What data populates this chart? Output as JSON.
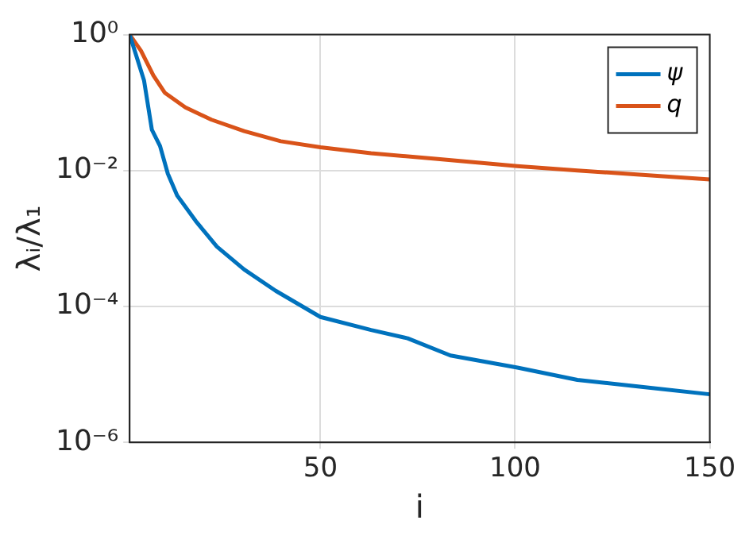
{
  "chart_data": {
    "type": "line",
    "xlabel": "i",
    "ylabel": "λᵢ/λ₁",
    "xlim": [
      1,
      150
    ],
    "xticks": [
      50,
      100,
      150
    ],
    "ylim": [
      1e-06,
      1
    ],
    "yticks": [
      {
        "value": 1,
        "label": "10⁰"
      },
      {
        "value": 0.01,
        "label": "10⁻²"
      },
      {
        "value": 0.0001,
        "label": "10⁻⁴"
      },
      {
        "value": 1e-06,
        "label": "10⁻⁶"
      }
    ],
    "log": "y",
    "grid": true,
    "legend": "top right",
    "marker": "none",
    "line_style": "solid",
    "series": [
      {
        "name": "ψ",
        "color": "#0072bd",
        "x": [
          1,
          4.7,
          6.7,
          8.8,
          10.8,
          13.2,
          18,
          23.4,
          30.4,
          38.5,
          50,
          63,
          72.4,
          83.4,
          100.6,
          116,
          132,
          150
        ],
        "values": [
          1,
          0.21,
          0.04,
          0.023,
          0.009,
          0.0043,
          0.0018,
          0.00076,
          0.00035,
          0.00017,
          7e-05,
          4.5e-05,
          3.4e-05,
          1.9e-05,
          1.26e-05,
          8.3e-06,
          6.6e-06,
          5.1e-06
        ]
      },
      {
        "name": "q",
        "color": "#d95319",
        "x": [
          1,
          3.9,
          7.1,
          10,
          15.3,
          22,
          30.4,
          39.8,
          50,
          63,
          79,
          100.6,
          116,
          132,
          150
        ],
        "values": [
          1,
          0.58,
          0.25,
          0.14,
          0.085,
          0.056,
          0.038,
          0.027,
          0.022,
          0.018,
          0.015,
          0.0116,
          0.01,
          0.0087,
          0.0074
        ]
      }
    ]
  }
}
